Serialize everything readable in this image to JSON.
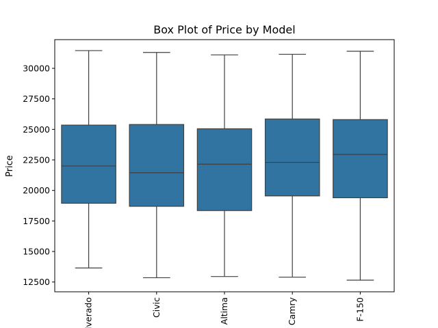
{
  "chart_data": {
    "type": "box",
    "title": "Box Plot of Price by Model",
    "xlabel": "",
    "ylabel": "Price",
    "categories": [
      "Silverado",
      "Civic",
      "Altima",
      "Camry",
      "F-150"
    ],
    "boxes": [
      {
        "category": "Silverado",
        "whisker_low": 13650,
        "q1": 18950,
        "median": 22000,
        "q3": 25350,
        "whisker_high": 31450
      },
      {
        "category": "Civic",
        "whisker_low": 12850,
        "q1": 18700,
        "median": 21450,
        "q3": 25400,
        "whisker_high": 31300
      },
      {
        "category": "Altima",
        "whisker_low": 12950,
        "q1": 18350,
        "median": 22150,
        "q3": 25050,
        "whisker_high": 31100
      },
      {
        "category": "Camry",
        "whisker_low": 12900,
        "q1": 19550,
        "median": 22300,
        "q3": 25850,
        "whisker_high": 31150
      },
      {
        "category": "F-150",
        "whisker_low": 12650,
        "q1": 19400,
        "median": 22950,
        "q3": 25800,
        "whisker_high": 31400
      }
    ],
    "yticks": [
      12500,
      15000,
      17500,
      20000,
      22500,
      25000,
      27500,
      30000
    ],
    "ylim": [
      11700,
      32350
    ],
    "box_color": "#3274a1",
    "line_color": "#3f3f3f",
    "grid": false,
    "legend": "none",
    "xtick_rotation": "vertical"
  }
}
